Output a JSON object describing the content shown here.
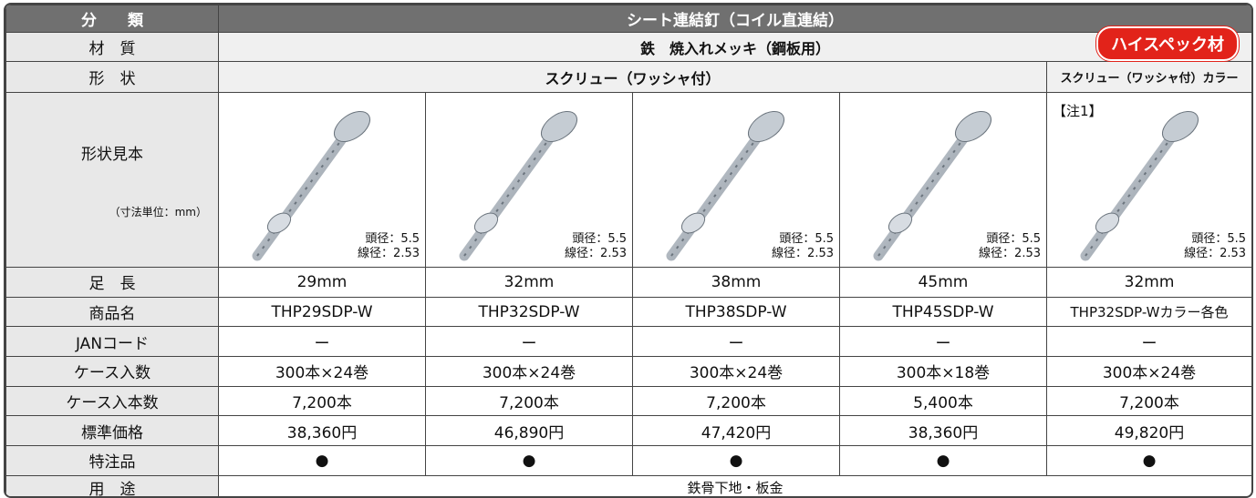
{
  "header": {
    "category_label": "分　　類",
    "category_value": "シート連結釘（コイル直連結）",
    "badge": "ハイスペック材"
  },
  "material": {
    "label": "材　質",
    "value": "鉄　焼入れメッキ（鋼板用）"
  },
  "shape": {
    "label": "形　状",
    "value": "スクリュー（ワッシャ付）",
    "value_color": "スクリュー（ワッシャ付）カラー"
  },
  "sample": {
    "label": "形状見本",
    "unit": "（寸法単位：mm）",
    "note": "【注1】",
    "items": [
      {
        "head": "頭径：5.5",
        "wire": "線径：2.53"
      },
      {
        "head": "頭径：5.5",
        "wire": "線径：2.53"
      },
      {
        "head": "頭径：5.5",
        "wire": "線径：2.53"
      },
      {
        "head": "頭径：5.5",
        "wire": "線径：2.53"
      },
      {
        "head": "頭径：5.5",
        "wire": "線径：2.53"
      }
    ]
  },
  "table": {
    "rows": [
      [
        "足　長",
        "29mm",
        "32mm",
        "38mm",
        "45mm",
        "32mm"
      ],
      [
        "商品名",
        "THP29SDP-W",
        "THP32SDP-W",
        "THP38SDP-W",
        "THP45SDP-W",
        "THP32SDP-Wカラー各色"
      ],
      [
        "JANコード",
        "ー",
        "ー",
        "ー",
        "ー",
        "ー"
      ],
      [
        "ケース入数",
        "300本×24巻",
        "300本×24巻",
        "300本×24巻",
        "300本×18巻",
        "300本×24巻"
      ],
      [
        "ケース入本数",
        "7,200本",
        "7,200本",
        "7,200本",
        "5,400本",
        "7,200本"
      ],
      [
        "標準価格",
        "38,360円",
        "46,890円",
        "47,420円",
        "38,360円",
        "49,820円"
      ],
      [
        "特注品",
        "●",
        "●",
        "●",
        "●",
        "●"
      ]
    ]
  },
  "usage": {
    "label": "用　途",
    "value": "鉄骨下地・板金"
  }
}
